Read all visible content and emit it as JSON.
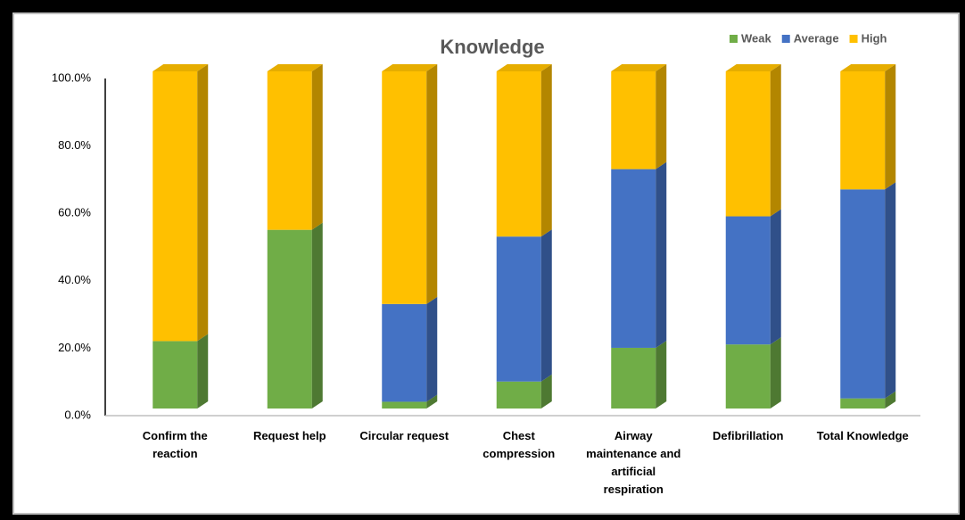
{
  "chart_data": {
    "type": "bar",
    "stacked": true,
    "title": "Knowledge",
    "categories": [
      "Confirm the reaction",
      "Request help",
      "Circular request",
      "Chest compression",
      "Airway maintenance and artificial respiration",
      "Defibrillation",
      "Total Knowledge"
    ],
    "series": [
      {
        "name": "Weak",
        "color": "#70ad47",
        "values": [
          20,
          53,
          2,
          8,
          18,
          19,
          3
        ]
      },
      {
        "name": "Average",
        "color": "#4472c4",
        "values": [
          0,
          0,
          29,
          43,
          53,
          38,
          62
        ]
      },
      {
        "name": "High",
        "color": "#ffc000",
        "values": [
          80,
          47,
          69,
          49,
          29,
          43,
          35
        ]
      }
    ],
    "ylim": [
      0,
      100
    ],
    "yticks": [
      {
        "value": 0,
        "label": "0.0%"
      },
      {
        "value": 20,
        "label": "20.0%"
      },
      {
        "value": 40,
        "label": "40.0%"
      },
      {
        "value": 60,
        "label": "60.0%"
      },
      {
        "value": 80,
        "label": "80.0%"
      },
      {
        "value": 100,
        "label": "100.0%"
      }
    ],
    "legend": "top-right"
  }
}
